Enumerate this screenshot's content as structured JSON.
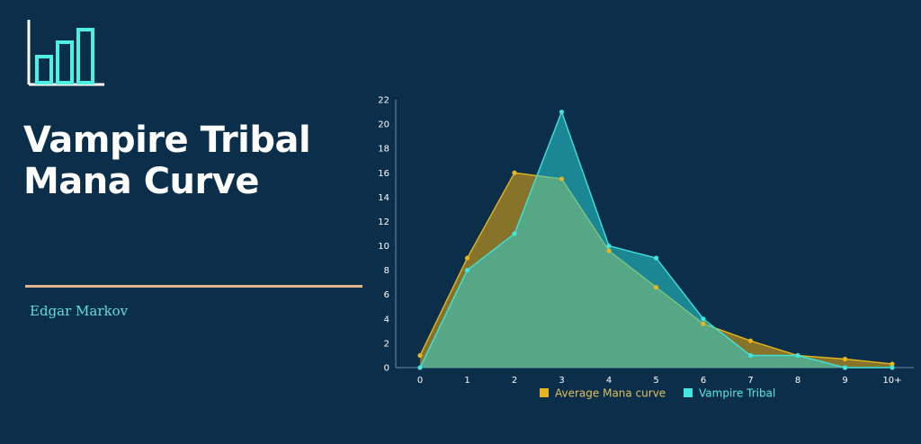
{
  "title": "Vampire Tribal Mana Curve",
  "author": "Edgar Markov",
  "colors": {
    "background": "#0b2e4a",
    "logo": "#4ef0e4",
    "divider": "#e0b48a",
    "author": "#5ee0d8",
    "series_average": "#d4a017",
    "series_vampire": "#3fe3dd"
  },
  "icons": {
    "logo": "bar-chart-icon"
  },
  "chart_data": {
    "type": "area",
    "categories": [
      "0",
      "1",
      "2",
      "3",
      "4",
      "5",
      "6",
      "7",
      "8",
      "9",
      "10+"
    ],
    "ylim": [
      0,
      22
    ],
    "yticks": [
      0,
      2,
      4,
      6,
      8,
      10,
      12,
      14,
      16,
      18,
      20,
      22
    ],
    "grid": false,
    "legend": "bottom",
    "series": [
      {
        "name": "Average Mana curve",
        "values": [
          1,
          9,
          16,
          15.5,
          9.6,
          6.6,
          3.6,
          2.2,
          1,
          0.7,
          0.3
        ]
      },
      {
        "name": "Vampire Tribal",
        "values": [
          0,
          8,
          11,
          21,
          10,
          9,
          4,
          1,
          1,
          0,
          0
        ]
      }
    ]
  }
}
